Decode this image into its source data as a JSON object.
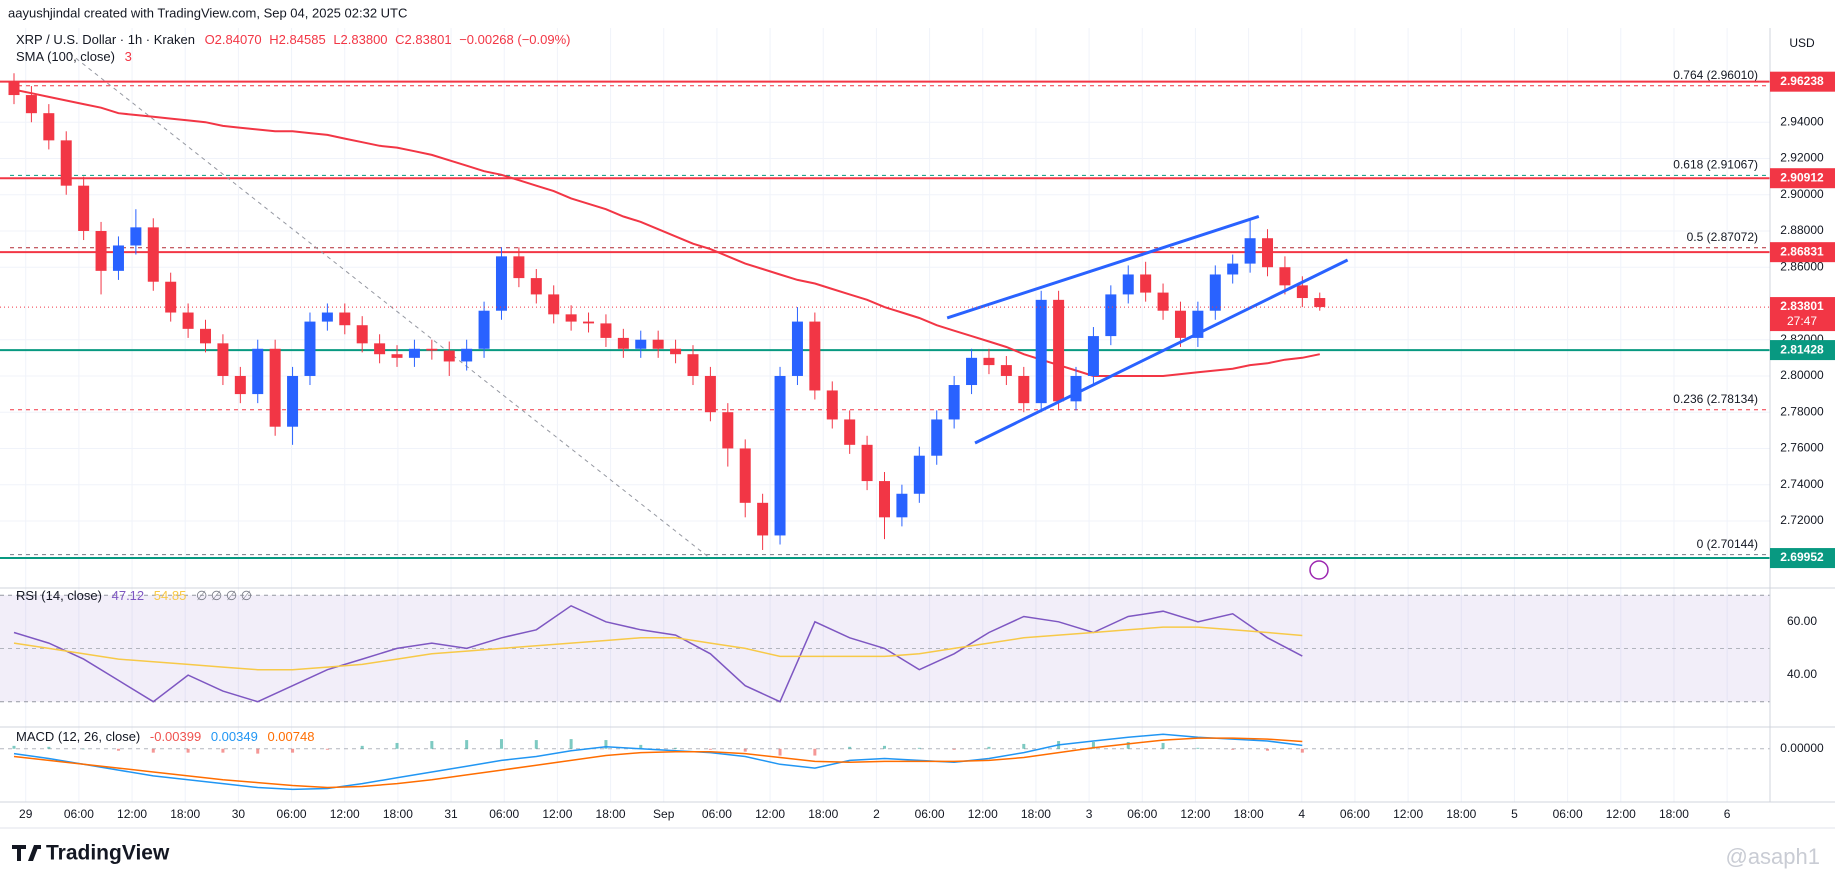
{
  "header": {
    "attribution": "aayushjindal created with TradingView.com, Sep 04, 2025 02:32 UTC",
    "symbol": "XRP / U.S. Dollar · 1h · Kraken",
    "ohlc": [
      "O2.84070",
      "H2.84585",
      "L2.83800",
      "C2.83801",
      "−0.00268 (−0.09%)"
    ],
    "currency": "USD"
  },
  "time_axis": {
    "labels": [
      "29",
      "06:00",
      "12:00",
      "18:00",
      "30",
      "06:00",
      "12:00",
      "18:00",
      "31",
      "06:00",
      "12:00",
      "18:00",
      "Sep",
      "06:00",
      "12:00",
      "18:00",
      "2",
      "06:00",
      "12:00",
      "18:00",
      "3",
      "06:00",
      "12:00",
      "18:00",
      "4",
      "06:00",
      "12:00",
      "18:00",
      "5",
      "06:00",
      "12:00",
      "18:00",
      "6"
    ]
  },
  "footer": {
    "brand": "TradingView",
    "watermark": "@asaph1"
  },
  "chart_data": [
    {
      "type": "candlestick",
      "up_color": "#2962ff",
      "down_color": "#f23645",
      "open": [
        2.962,
        2.955,
        2.945,
        2.93,
        2.905,
        2.88,
        2.858,
        2.872,
        2.882,
        2.852,
        2.835,
        2.826,
        2.818,
        2.8,
        2.79,
        2.815,
        2.772,
        2.8,
        2.83,
        2.835,
        2.828,
        2.818,
        2.812,
        2.81,
        2.815,
        2.814,
        2.808,
        2.815,
        2.836,
        2.866,
        2.854,
        2.845,
        2.834,
        2.83,
        2.829,
        2.821,
        2.815,
        2.82,
        2.815,
        2.812,
        2.8,
        2.78,
        2.76,
        2.73,
        2.712,
        2.8,
        2.83,
        2.792,
        2.776,
        2.762,
        2.742,
        2.722,
        2.735,
        2.756,
        2.776,
        2.795,
        2.81,
        2.806,
        2.8,
        2.785,
        2.842,
        2.786,
        2.8,
        2.822,
        2.845,
        2.856,
        2.846,
        2.836,
        2.821,
        2.836,
        2.856,
        2.862,
        2.876,
        2.86,
        2.85,
        2.843
      ],
      "high": [
        2.967,
        2.96,
        2.95,
        2.935,
        2.91,
        2.885,
        2.877,
        2.892,
        2.887,
        2.857,
        2.84,
        2.831,
        2.823,
        2.805,
        2.82,
        2.82,
        2.805,
        2.835,
        2.84,
        2.84,
        2.833,
        2.823,
        2.817,
        2.82,
        2.82,
        2.819,
        2.82,
        2.841,
        2.871,
        2.871,
        2.859,
        2.85,
        2.839,
        2.835,
        2.834,
        2.826,
        2.825,
        2.825,
        2.82,
        2.817,
        2.805,
        2.785,
        2.765,
        2.735,
        2.805,
        2.838,
        2.835,
        2.797,
        2.781,
        2.767,
        2.747,
        2.74,
        2.761,
        2.781,
        2.8,
        2.815,
        2.815,
        2.811,
        2.805,
        2.847,
        2.847,
        2.805,
        2.827,
        2.85,
        2.861,
        2.863,
        2.851,
        2.841,
        2.841,
        2.861,
        2.867,
        2.886,
        2.881,
        2.866,
        2.855,
        2.846
      ],
      "low": [
        2.95,
        2.94,
        2.925,
        2.9,
        2.875,
        2.845,
        2.853,
        2.867,
        2.847,
        2.83,
        2.821,
        2.813,
        2.795,
        2.785,
        2.785,
        2.767,
        2.762,
        2.795,
        2.825,
        2.823,
        2.813,
        2.807,
        2.805,
        2.805,
        2.809,
        2.8,
        2.803,
        2.81,
        2.831,
        2.849,
        2.84,
        2.829,
        2.825,
        2.824,
        2.816,
        2.81,
        2.81,
        2.81,
        2.807,
        2.795,
        2.775,
        2.75,
        2.722,
        2.704,
        2.707,
        2.795,
        2.787,
        2.771,
        2.757,
        2.737,
        2.71,
        2.717,
        2.73,
        2.751,
        2.771,
        2.79,
        2.801,
        2.795,
        2.78,
        2.78,
        2.781,
        2.781,
        2.795,
        2.817,
        2.84,
        2.841,
        2.831,
        2.816,
        2.816,
        2.831,
        2.851,
        2.857,
        2.855,
        2.845,
        2.838,
        2.836
      ],
      "close": [
        2.955,
        2.945,
        2.93,
        2.905,
        2.88,
        2.858,
        2.872,
        2.882,
        2.852,
        2.835,
        2.826,
        2.818,
        2.8,
        2.79,
        2.815,
        2.772,
        2.8,
        2.83,
        2.835,
        2.828,
        2.818,
        2.812,
        2.81,
        2.815,
        2.814,
        2.808,
        2.815,
        2.836,
        2.866,
        2.854,
        2.845,
        2.834,
        2.83,
        2.829,
        2.821,
        2.815,
        2.82,
        2.815,
        2.812,
        2.8,
        2.78,
        2.76,
        2.73,
        2.712,
        2.8,
        2.83,
        2.792,
        2.776,
        2.762,
        2.742,
        2.722,
        2.735,
        2.756,
        2.776,
        2.795,
        2.81,
        2.806,
        2.8,
        2.785,
        2.842,
        2.786,
        2.8,
        2.822,
        2.845,
        2.856,
        2.846,
        2.836,
        2.821,
        2.836,
        2.856,
        2.862,
        2.876,
        2.86,
        2.85,
        2.843,
        2.838
      ],
      "sma": {
        "name": "SMA (100, close)",
        "legend_value": "3",
        "color": "#f23645",
        "values": [
          2.958,
          2.956,
          2.954,
          2.952,
          2.95,
          2.948,
          2.945,
          2.944,
          2.943,
          2.942,
          2.941,
          2.94,
          2.938,
          2.937,
          2.936,
          2.935,
          2.935,
          2.934,
          2.933,
          2.931,
          2.929,
          2.927,
          2.926,
          2.924,
          2.922,
          2.919,
          2.916,
          2.913,
          2.911,
          2.908,
          2.905,
          2.902,
          2.898,
          2.895,
          2.892,
          2.888,
          2.885,
          2.881,
          2.877,
          2.873,
          2.87,
          2.866,
          2.862,
          2.859,
          2.856,
          2.853,
          2.851,
          2.848,
          2.845,
          2.842,
          2.838,
          2.835,
          2.832,
          2.828,
          2.825,
          2.822,
          2.819,
          2.816,
          2.812,
          2.809,
          2.806,
          2.803,
          2.8,
          2.8,
          2.8,
          2.8,
          2.8,
          2.801,
          2.802,
          2.803,
          2.804,
          2.806,
          2.807,
          2.809,
          2.81,
          2.812
        ]
      },
      "ylim": [
        2.683,
        2.992
      ],
      "yticks": [
        {
          "value": 2.72,
          "label": "2.72000"
        },
        {
          "value": 2.74,
          "label": "2.74000"
        },
        {
          "value": 2.76,
          "label": "2.76000"
        },
        {
          "value": 2.78,
          "label": "2.78000"
        },
        {
          "value": 2.8,
          "label": "2.80000"
        },
        {
          "value": 2.82,
          "label": "2.82000"
        },
        {
          "value": 2.86,
          "label": "2.86000"
        },
        {
          "value": 2.88,
          "label": "2.88000"
        },
        {
          "value": 2.9,
          "label": "2.90000"
        },
        {
          "value": 2.92,
          "label": "2.92000"
        },
        {
          "value": 2.94,
          "label": "2.94000"
        }
      ],
      "grid": true,
      "levels": [
        {
          "value": 2.96238,
          "color": "#f23645"
        },
        {
          "value": 2.90912,
          "color": "#f23645"
        },
        {
          "value": 2.86831,
          "color": "#f23645"
        },
        {
          "value": 2.81428,
          "color": "#089981"
        },
        {
          "value": 2.69952,
          "color": "#089981"
        }
      ],
      "fib": [
        {
          "value": 2.9601,
          "label": "0.764 (2.96010)",
          "color": "#f23645"
        },
        {
          "value": 2.91067,
          "label": "0.618 (2.91067)",
          "color": "#089981"
        },
        {
          "value": 2.87072,
          "label": "0.5 (2.87072)",
          "color": "#b22833"
        },
        {
          "value": 2.78134,
          "label": "0.236 (2.78134)",
          "color": "#f23645"
        },
        {
          "value": 2.70144,
          "label": "0 (2.70144)",
          "color": "#787b86"
        }
      ],
      "channel": {
        "color": "#2962ff",
        "upper": [
          2.832,
          2.888
        ],
        "lower": [
          2.763,
          2.864
        ]
      },
      "diagonal": [
        2.978,
        2.7
      ],
      "last_price": {
        "value": 2.83801,
        "countdown": "27:47",
        "color": "#f23645"
      }
    },
    {
      "type": "line",
      "name": "RSI (14, close)",
      "legend_extra": "∅ ∅ ∅ ∅",
      "series": [
        {
          "color": "#7e57c2",
          "values": [
            56,
            52,
            46,
            38,
            30,
            40,
            34,
            30,
            36,
            42,
            46,
            50,
            52,
            50,
            54,
            57,
            66,
            60,
            57,
            55,
            48,
            36,
            30,
            60,
            54,
            50,
            42,
            48,
            56,
            62,
            60,
            56,
            62,
            64,
            60,
            63,
            54,
            47.12
          ]
        },
        {
          "color": "#f7c948",
          "values": [
            52,
            50,
            48,
            46,
            45,
            44,
            43,
            42,
            42,
            43,
            44,
            46,
            48,
            49,
            50,
            51,
            52,
            53,
            54,
            54,
            52,
            50,
            47,
            47,
            47,
            47,
            48,
            50,
            52,
            54,
            55,
            56,
            57,
            58,
            58,
            57,
            56,
            54.85
          ]
        }
      ],
      "ylim": [
        20.5,
        72.7
      ],
      "yticks": [
        {
          "value": 60,
          "label": "60.00"
        },
        {
          "value": 40,
          "label": "40.00"
        }
      ],
      "band": [
        30,
        70
      ],
      "middle": 50,
      "band_color": "#7e57c2"
    },
    {
      "type": "macd",
      "name": "MACD (12, 26, close)",
      "series": [
        {
          "kind": "histogram",
          "positive_color": "#26a69a",
          "negative_color": "#ef5350",
          "values": [
            0.003,
            0.002,
            0,
            -0.002,
            -0.004,
            -0.004,
            -0.004,
            -0.005,
            -0.004,
            -0.001,
            0.003,
            0.006,
            0.008,
            0.009,
            0.01,
            0.009,
            0.01,
            0.009,
            0.004,
            0.001,
            -0.001,
            -0.003,
            -0.007,
            -0.007,
            0.002,
            0.003,
            0.001,
            -0.001,
            0.002,
            0.005,
            0.008,
            0.007,
            0.007,
            0.006,
            0.001,
            -0.001,
            -0.002,
            -0.00399
          ]
        },
        {
          "kind": "line",
          "color": "#2196f3",
          "values": [
            -0.005,
            -0.01,
            -0.016,
            -0.022,
            -0.028,
            -0.032,
            -0.036,
            -0.04,
            -0.042,
            -0.041,
            -0.036,
            -0.03,
            -0.024,
            -0.018,
            -0.012,
            -0.008,
            -0.002,
            0.002,
            0,
            -0.002,
            -0.004,
            -0.008,
            -0.016,
            -0.02,
            -0.012,
            -0.01,
            -0.012,
            -0.014,
            -0.01,
            -0.004,
            0.004,
            0.008,
            0.012,
            0.015,
            0.012,
            0.01,
            0.008,
            0.00349
          ]
        },
        {
          "kind": "line",
          "color": "#ff6d00",
          "values": [
            -0.008,
            -0.012,
            -0.016,
            -0.02,
            -0.024,
            -0.028,
            -0.032,
            -0.035,
            -0.038,
            -0.04,
            -0.039,
            -0.036,
            -0.032,
            -0.027,
            -0.022,
            -0.017,
            -0.012,
            -0.007,
            -0.004,
            -0.003,
            -0.003,
            -0.005,
            -0.009,
            -0.013,
            -0.014,
            -0.013,
            -0.013,
            -0.013,
            -0.012,
            -0.009,
            -0.004,
            0.001,
            0.005,
            0.009,
            0.011,
            0.011,
            0.01,
            0.00748
          ]
        }
      ],
      "ylim": [
        -0.055,
        0.0225
      ],
      "yticks": [
        {
          "value": 0,
          "label": "0.00000"
        }
      ]
    }
  ]
}
